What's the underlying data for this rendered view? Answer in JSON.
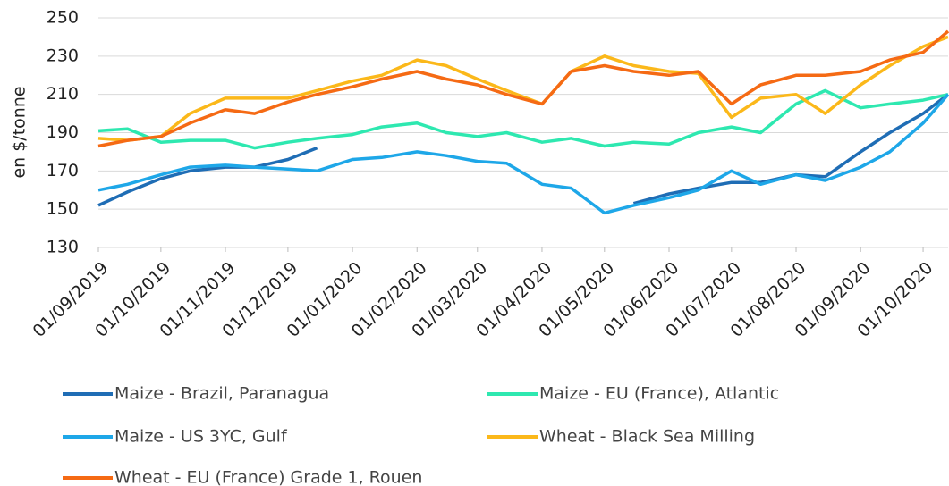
{
  "chart_data": {
    "type": "line",
    "y_label": "en $/tonne",
    "x": [
      "01/09/2019",
      "15/09/2019",
      "01/10/2019",
      "15/10/2019",
      "01/11/2019",
      "15/11/2019",
      "01/12/2019",
      "15/12/2019",
      "01/01/2020",
      "15/01/2020",
      "01/02/2020",
      "15/02/2020",
      "01/03/2020",
      "15/03/2020",
      "01/04/2020",
      "15/04/2020",
      "01/05/2020",
      "15/05/2020",
      "01/06/2020",
      "15/06/2020",
      "01/07/2020",
      "15/07/2020",
      "01/08/2020",
      "15/08/2020",
      "01/09/2020",
      "15/09/2020",
      "01/10/2020",
      "13/10/2020"
    ],
    "series": [
      {
        "name": "Maize - Brazil, Paranagua",
        "color": "#1f6db5",
        "values": [
          152,
          159,
          166,
          170,
          172,
          172,
          176,
          182,
          null,
          null,
          null,
          null,
          null,
          null,
          null,
          null,
          null,
          153,
          158,
          161,
          164,
          164,
          168,
          167,
          180,
          190,
          200,
          210
        ]
      },
      {
        "name": "Maize - EU (France), Atlantic",
        "color": "#2ee8b0",
        "values": [
          191,
          192,
          185,
          186,
          186,
          182,
          185,
          187,
          189,
          193,
          195,
          190,
          188,
          190,
          185,
          187,
          183,
          185,
          184,
          190,
          193,
          190,
          205,
          212,
          203,
          205,
          207,
          210
        ]
      },
      {
        "name": "Maize - US 3YC, Gulf",
        "color": "#1ea7e8",
        "values": [
          160,
          163,
          168,
          172,
          173,
          172,
          171,
          170,
          176,
          177,
          180,
          178,
          175,
          174,
          163,
          161,
          148,
          152,
          156,
          160,
          170,
          163,
          168,
          165,
          172,
          180,
          195,
          210
        ]
      },
      {
        "name": "Wheat - Black Sea Milling",
        "color": "#fbb81a",
        "values": [
          187,
          186,
          188,
          200,
          208,
          208,
          208,
          212,
          217,
          220,
          228,
          225,
          218,
          212,
          205,
          222,
          230,
          225,
          222,
          221,
          198,
          208,
          210,
          200,
          215,
          225,
          235,
          240
        ]
      },
      {
        "name": "Wheat - EU (France) Grade 1, Rouen",
        "color": "#f56a14",
        "values": [
          183,
          186,
          188,
          195,
          202,
          200,
          206,
          210,
          214,
          218,
          222,
          218,
          215,
          210,
          205,
          222,
          225,
          222,
          220,
          222,
          205,
          215,
          220,
          220,
          222,
          228,
          232,
          243
        ]
      }
    ],
    "xlim": [
      "01/09/2019",
      "13/10/2020"
    ],
    "xticks": [
      "01/09/2019",
      "01/10/2019",
      "01/11/2019",
      "01/12/2019",
      "01/01/2020",
      "01/02/2020",
      "01/03/2020",
      "01/04/2020",
      "01/05/2020",
      "01/06/2020",
      "01/07/2020",
      "01/08/2020",
      "01/09/2020",
      "01/10/2020"
    ],
    "ylim": [
      130,
      250
    ],
    "yticks": [
      130,
      150,
      170,
      190,
      210,
      230,
      250
    ],
    "grid": true
  }
}
